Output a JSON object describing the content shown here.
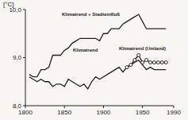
{
  "chart_data": {
    "type": "line",
    "ylabel": "[°C]",
    "x": [
      1805,
      1810,
      1815,
      1820,
      1825,
      1830,
      1835,
      1840,
      1845,
      1850,
      1855,
      1860,
      1865,
      1870,
      1875,
      1880,
      1885,
      1890,
      1895,
      1900,
      1905,
      1910,
      1915,
      1920,
      1925,
      1930,
      1935,
      1940,
      1945,
      1950,
      1955,
      1960,
      1965,
      1970,
      1975,
      1980
    ],
    "series": [
      {
        "name": "Klimatrend + Stadteinfluß",
        "color": "#222222",
        "marker": "none",
        "values": [
          8.65,
          8.6,
          8.6,
          8.75,
          8.75,
          8.8,
          9.05,
          9.05,
          9.05,
          9.15,
          9.2,
          9.3,
          9.35,
          9.4,
          9.4,
          9.4,
          9.4,
          9.4,
          9.35,
          9.5,
          9.5,
          9.6,
          9.6,
          9.6,
          9.7,
          9.75,
          9.8,
          9.85,
          9.9,
          9.75,
          9.6,
          9.6,
          9.6,
          9.6,
          9.6,
          9.6
        ]
      },
      {
        "name": "Klimatrend",
        "color": "#222222",
        "marker": "none",
        "values": [
          8.6,
          8.55,
          8.5,
          8.55,
          8.5,
          8.5,
          8.4,
          8.45,
          8.45,
          8.4,
          8.55,
          8.5,
          8.45,
          8.4,
          8.45,
          8.35,
          8.5,
          8.6,
          8.55,
          8.6,
          8.65,
          8.7,
          8.75,
          8.8,
          8.7,
          8.8,
          8.85,
          8.9,
          8.95,
          8.85,
          8.75,
          8.8,
          8.75,
          8.75,
          8.75,
          8.75
        ]
      },
      {
        "name": "Klimatrend (Umland)",
        "color": "#222222",
        "marker": "circle",
        "values": [
          null,
          null,
          null,
          null,
          null,
          null,
          null,
          null,
          null,
          null,
          null,
          null,
          null,
          null,
          null,
          null,
          null,
          null,
          null,
          null,
          null,
          null,
          null,
          null,
          null,
          8.8,
          8.85,
          8.95,
          9.05,
          8.9,
          8.95,
          8.9,
          8.9,
          8.9,
          8.9,
          8.9
        ]
      }
    ],
    "xlim": [
      1800,
      1990
    ],
    "xticks": [
      1800,
      1850,
      1900,
      1950,
      1990
    ],
    "ylim": [
      8,
      10
    ],
    "yticks": [
      {
        "value": 8,
        "label": "8,0"
      },
      {
        "value": 9,
        "label": "9,0"
      },
      {
        "value": 10,
        "label": "10,0"
      }
    ],
    "grid": false
  }
}
